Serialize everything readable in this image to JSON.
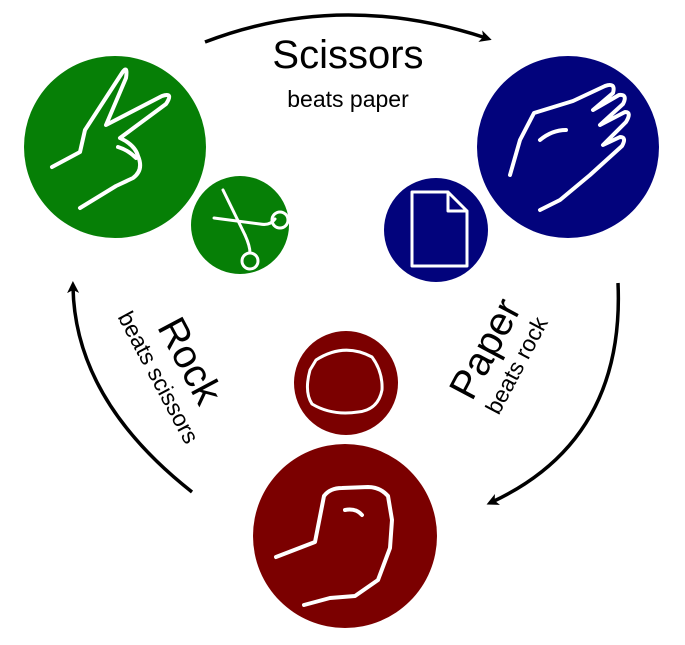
{
  "scissors": {
    "title": "Scissors",
    "subtitle": "beats paper",
    "color": "#067F06"
  },
  "paper": {
    "title": "Paper",
    "subtitle": "beats rock",
    "color": "#02037C"
  },
  "rock": {
    "title": "Rock",
    "subtitle": "beats scissors",
    "color": "#7B0000"
  },
  "icons": {
    "scissors_hand": "peace-sign-hand-icon",
    "scissors_symbol": "scissors-icon",
    "paper_hand": "open-palm-hand-icon",
    "paper_symbol": "document-icon",
    "rock_hand": "fist-hand-icon",
    "rock_symbol": "stone-icon"
  }
}
